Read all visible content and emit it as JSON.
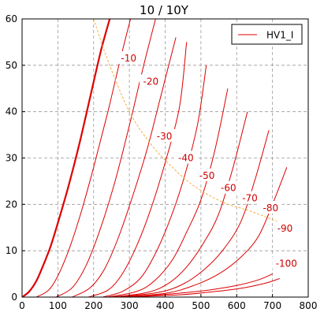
{
  "chart_data": {
    "type": "line",
    "title": "10 / 10Y",
    "xlabel": "",
    "ylabel": "",
    "xlim": [
      0,
      800
    ],
    "ylim": [
      0,
      60
    ],
    "xticks": [
      0,
      100,
      200,
      300,
      400,
      500,
      600,
      700,
      800
    ],
    "yticks": [
      0,
      10,
      20,
      30,
      40,
      50,
      60
    ],
    "grid": true,
    "legend": {
      "placement": "top-right",
      "entries": [
        "HV1_I"
      ]
    },
    "colors": {
      "curves": "#dd0000",
      "load_line": "#f5b042",
      "grid": "#999999"
    },
    "series": [
      {
        "label": "",
        "bold": true,
        "x": [
          0,
          20,
          40,
          60,
          80,
          100,
          130,
          160,
          190,
          220,
          245
        ],
        "y": [
          0,
          1.2,
          3.5,
          7,
          11,
          16,
          24,
          33,
          43,
          53,
          60
        ]
      },
      {
        "label": "-10",
        "bold": false,
        "x": [
          40,
          80,
          120,
          160,
          200,
          240,
          280,
          320
        ],
        "y": [
          0,
          2,
          8,
          17,
          28,
          40,
          53,
          65
        ]
      },
      {
        "label": "-20",
        "bold": false,
        "x": [
          95,
          140,
          180,
          220,
          260,
          300,
          340,
          380
        ],
        "y": [
          0,
          2,
          7,
          15,
          25,
          37,
          50,
          62
        ]
      },
      {
        "label": "-30",
        "bold": false,
        "x": [
          140,
          190,
          230,
          270,
          310,
          350,
          390,
          430
        ],
        "y": [
          0,
          2,
          6,
          13,
          22,
          32,
          44,
          56
        ]
      },
      {
        "label": "-40",
        "bold": false,
        "x": [
          185,
          240,
          280,
          320,
          360,
          400,
          440,
          460
        ],
        "y": [
          0,
          1.5,
          5,
          11,
          19,
          29,
          41,
          55
        ]
      },
      {
        "label": "-50",
        "bold": false,
        "x": [
          225,
          280,
          330,
          370,
          410,
          450,
          490,
          515
        ],
        "y": [
          0,
          1.2,
          4,
          9,
          16,
          25,
          37,
          50
        ]
      },
      {
        "label": "-60",
        "bold": false,
        "x": [
          240,
          320,
          370,
          420,
          460,
          500,
          540,
          575
        ],
        "y": [
          0,
          1.2,
          3.5,
          8,
          14,
          21,
          32,
          45
        ]
      },
      {
        "label": "-70",
        "bold": false,
        "x": [
          250,
          350,
          410,
          460,
          510,
          550,
          590,
          630
        ],
        "y": [
          0,
          1,
          3,
          6.5,
          12,
          18,
          28,
          40
        ]
      },
      {
        "label": "-80",
        "bold": false,
        "x": [
          260,
          380,
          450,
          510,
          560,
          610,
          650,
          690
        ],
        "y": [
          0,
          1,
          2.8,
          6,
          10,
          16,
          25,
          36
        ]
      },
      {
        "label": "-90",
        "bold": false,
        "x": [
          270,
          400,
          480,
          550,
          610,
          660,
          700,
          740
        ],
        "y": [
          0,
          0.8,
          2.5,
          5,
          8.5,
          13,
          20,
          28
        ]
      },
      {
        "label": "-100",
        "bold": false,
        "x": [
          280,
          420,
          520,
          600,
          660,
          700
        ],
        "y": [
          0,
          0.7,
          1.5,
          2.5,
          3.7,
          5
        ]
      },
      {
        "label": "",
        "bold": false,
        "x": [
          290,
          440,
          540,
          620,
          680,
          720
        ],
        "y": [
          0,
          0.5,
          1.2,
          2,
          3,
          4
        ]
      }
    ],
    "load_line": {
      "x": [
        200,
        240,
        300,
        360,
        420,
        480,
        560,
        640,
        740
      ],
      "y": [
        60,
        51,
        40,
        33,
        28,
        24,
        20.5,
        18.5,
        15.5
      ]
    },
    "curve_labels": [
      {
        "text": "-10",
        "x": 298,
        "y": 51.5
      },
      {
        "text": "-20",
        "x": 360,
        "y": 46.5
      },
      {
        "text": "-30",
        "x": 398,
        "y": 34.7
      },
      {
        "text": "-40",
        "x": 458,
        "y": 30.0
      },
      {
        "text": "-50",
        "x": 517,
        "y": 26.2
      },
      {
        "text": "-60",
        "x": 577,
        "y": 23.5
      },
      {
        "text": "-70",
        "x": 637,
        "y": 21.3
      },
      {
        "text": "-80",
        "x": 695,
        "y": 19.2
      },
      {
        "text": "-90",
        "x": 735,
        "y": 14.8
      },
      {
        "text": "-100",
        "x": 739,
        "y": 7.2
      }
    ]
  }
}
